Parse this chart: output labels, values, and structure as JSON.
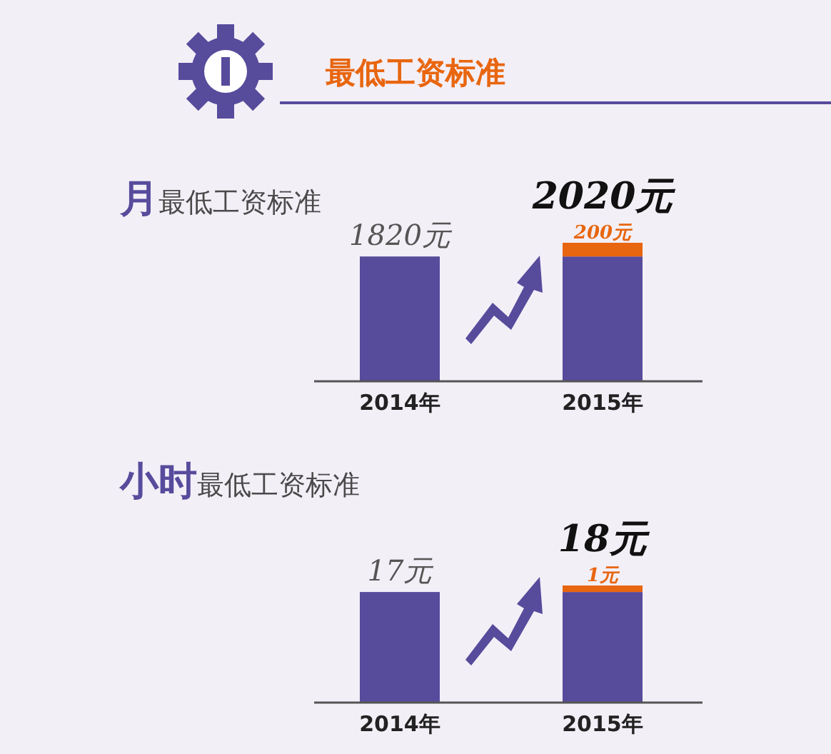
{
  "chart_data": [
    {
      "type": "bar",
      "title": "最低工资标准",
      "subtitle": "**月**最低工资标准",
      "stacked": true,
      "categories": [
        "2014年",
        "2015年"
      ],
      "series": [
        {
          "color": "#574b9c",
          "values": [
            1820,
            1820
          ],
          "value_labels": [
            "1820元",
            null
          ]
        },
        {
          "color": "#e8660f",
          "values": [
            null,
            200
          ],
          "value_labels": [
            null,
            "200元"
          ]
        }
      ],
      "totals": [
        null,
        "2020元"
      ]
    },
    {
      "type": "bar",
      "title": "**小时**最低工资标准",
      "stacked": true,
      "categories": [
        "2014年",
        "2015年"
      ],
      "series": [
        {
          "color": "#574b9c",
          "values": [
            17,
            17
          ],
          "value_labels": [
            "17元",
            null
          ]
        },
        {
          "color": "#e8660f",
          "values": [
            null,
            1
          ],
          "value_labels": [
            null,
            "1元"
          ]
        }
      ],
      "totals": [
        null,
        "18元"
      ]
    }
  ]
}
